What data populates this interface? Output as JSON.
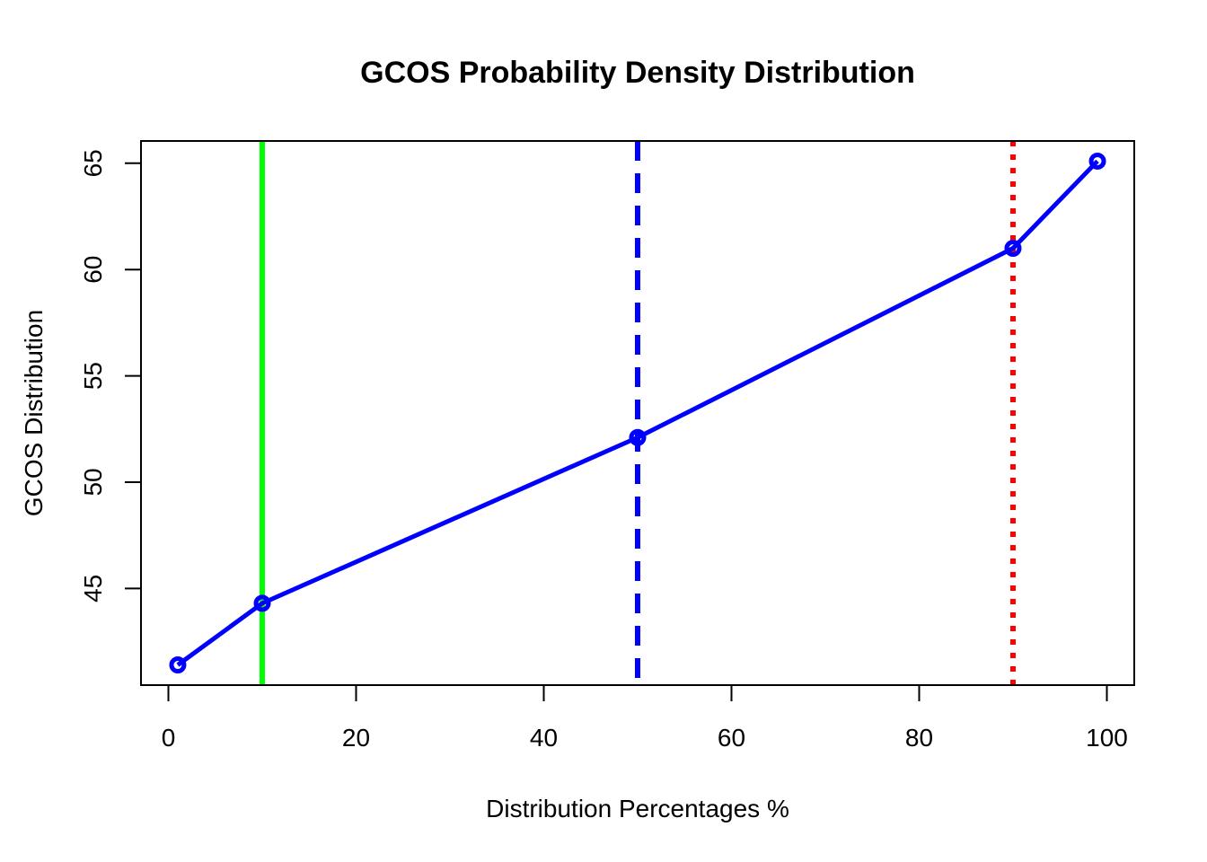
{
  "chart_data": {
    "type": "line",
    "title": "GCOS Probability Density Distribution",
    "xlabel": "Distribution Percentages %",
    "ylabel": "GCOS Distribution",
    "xlim": [
      1,
      99
    ],
    "ylim": [
      41.4,
      65.1
    ],
    "x_ticks": [
      0,
      20,
      40,
      60,
      80,
      100
    ],
    "y_ticks": [
      45,
      50,
      55,
      60,
      65
    ],
    "grid": false,
    "series": [
      {
        "color": "#0000ff",
        "x": [
          1,
          10,
          50,
          90,
          99
        ],
        "y": [
          41.4,
          44.3,
          52.1,
          61.0,
          65.1
        ]
      }
    ],
    "reference_lines": [
      {
        "x": 10,
        "color": "#00ff00",
        "style": "solid"
      },
      {
        "x": 50,
        "color": "#0000ff",
        "style": "dashed"
      },
      {
        "x": 90,
        "color": "#ff0000",
        "style": "dotted"
      }
    ]
  }
}
